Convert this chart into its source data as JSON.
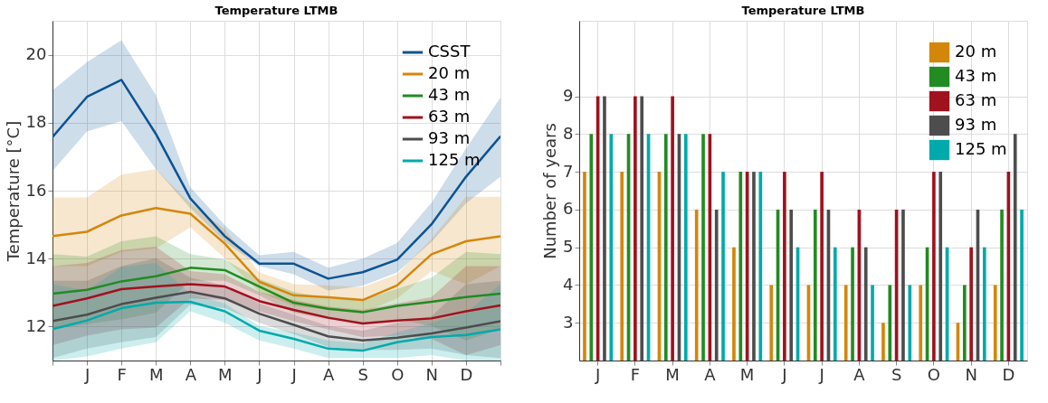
{
  "chart_data": [
    {
      "type": "line",
      "title": "Temperature LTMB",
      "ylabel": "Temperature [°C]",
      "categories": [
        null,
        "J",
        "F",
        "M",
        "A",
        "M",
        "J",
        "J",
        "A",
        "S",
        "O",
        "N",
        "D",
        null
      ],
      "ylim": [
        11,
        21
      ],
      "yticks": [
        12,
        14,
        16,
        18,
        20
      ],
      "grid": true,
      "legend": "top right",
      "series": [
        {
          "name": "CSST",
          "color": "#0b5394",
          "values": [
            17.58,
            18.76,
            19.26,
            17.67,
            15.77,
            14.66,
            13.85,
            13.85,
            13.41,
            13.6,
            13.97,
            15.01,
            16.41,
            17.6
          ],
          "lower": [
            16.58,
            17.74,
            18.05,
            16.63,
            15.49,
            14.49,
            13.78,
            13.54,
            13.06,
            13.2,
            13.59,
            14.49,
            15.63,
            16.41
          ],
          "upper": [
            18.95,
            19.78,
            20.43,
            18.81,
            16.1,
            14.98,
            14.1,
            14.2,
            13.73,
            14.0,
            14.46,
            15.65,
            17.24,
            18.74
          ]
        },
        {
          "name": "20 m",
          "color": "#d4860b",
          "values": [
            14.66,
            14.79,
            15.27,
            15.49,
            15.32,
            14.44,
            13.32,
            12.92,
            12.86,
            12.78,
            13.21,
            14.13,
            14.51,
            14.66
          ],
          "lower": [
            13.78,
            13.78,
            14.2,
            14.3,
            14.92,
            14.01,
            13.02,
            12.61,
            12.49,
            12.4,
            12.83,
            13.63,
            13.25,
            13.78
          ],
          "upper": [
            15.8,
            15.8,
            16.47,
            16.63,
            15.63,
            14.87,
            13.59,
            13.25,
            13.21,
            13.16,
            13.54,
            14.58,
            15.82,
            15.82
          ]
        },
        {
          "name": "43 m",
          "color": "#228b22",
          "values": [
            12.97,
            13.08,
            13.33,
            13.48,
            13.73,
            13.66,
            13.18,
            12.7,
            12.52,
            12.42,
            12.61,
            12.73,
            12.87,
            12.97
          ],
          "lower": [
            11.92,
            12.07,
            12.21,
            12.4,
            13.35,
            13.35,
            12.92,
            12.4,
            12.21,
            12.11,
            12.21,
            12.02,
            11.59,
            11.92
          ],
          "upper": [
            14.13,
            14.06,
            14.51,
            14.66,
            14.13,
            13.97,
            13.4,
            13.02,
            12.83,
            12.78,
            13.11,
            13.44,
            14.2,
            14.13
          ]
        },
        {
          "name": "63 m",
          "color": "#a0121e",
          "values": [
            12.61,
            12.83,
            13.1,
            13.18,
            13.25,
            13.18,
            12.75,
            12.49,
            12.26,
            12.09,
            12.18,
            12.24,
            12.45,
            12.62
          ],
          "lower": [
            11.45,
            11.73,
            11.92,
            11.97,
            12.83,
            12.78,
            12.45,
            12.16,
            11.92,
            11.69,
            11.73,
            11.64,
            11.16,
            11.45
          ],
          "upper": [
            13.78,
            13.87,
            14.25,
            14.35,
            13.63,
            13.54,
            13.02,
            12.78,
            12.59,
            12.49,
            12.68,
            12.87,
            13.78,
            13.78
          ]
        },
        {
          "name": "93 m",
          "color": "#4d4d4d",
          "values": [
            12.16,
            12.35,
            12.66,
            12.85,
            13.02,
            12.83,
            12.38,
            12.05,
            11.71,
            11.59,
            11.67,
            11.8,
            11.97,
            12.16
          ],
          "lower": [
            11.07,
            11.35,
            11.54,
            11.69,
            12.64,
            12.54,
            12.11,
            11.78,
            11.4,
            11.31,
            11.31,
            11.35,
            11.16,
            11.07
          ],
          "upper": [
            13.35,
            13.35,
            13.78,
            14.01,
            13.44,
            13.21,
            12.68,
            12.35,
            12.02,
            11.88,
            12.11,
            12.3,
            13.25,
            13.35
          ]
        },
        {
          "name": "125 m",
          "color": "#00aaaa",
          "values": [
            11.92,
            12.18,
            12.54,
            12.7,
            12.73,
            12.45,
            11.88,
            11.64,
            11.35,
            11.29,
            11.54,
            11.69,
            11.75,
            11.92
          ],
          "lower": [
            11.0,
            11.12,
            11.35,
            11.54,
            12.45,
            12.11,
            11.59,
            11.35,
            11.07,
            11.07,
            11.07,
            11.16,
            11.0,
            11.0
          ],
          "upper": [
            13.25,
            13.06,
            13.75,
            13.87,
            12.97,
            12.68,
            12.02,
            11.83,
            11.59,
            11.5,
            11.83,
            12.11,
            12.4,
            13.25
          ]
        }
      ]
    },
    {
      "type": "bar",
      "title": "Temperature LTMB",
      "ylabel": "Number of years",
      "categories": [
        "J",
        "F",
        "M",
        "A",
        "M",
        "J",
        "J",
        "A",
        "S",
        "O",
        "N",
        "D"
      ],
      "ylim": [
        2,
        11
      ],
      "yticks": [
        3,
        4,
        5,
        6,
        7,
        8,
        9
      ],
      "grid": true,
      "legend": "top right",
      "series": [
        {
          "name": "20 m",
          "color": "#d4860b",
          "values": [
            7,
            7,
            7,
            6,
            5,
            4,
            4,
            4,
            3,
            4,
            3,
            4
          ]
        },
        {
          "name": "43 m",
          "color": "#228b22",
          "values": [
            8,
            8,
            8,
            8,
            7,
            6,
            6,
            5,
            4,
            5,
            4,
            6
          ]
        },
        {
          "name": "63 m",
          "color": "#a0121e",
          "values": [
            9,
            9,
            9,
            8,
            7,
            7,
            7,
            6,
            6,
            7,
            5,
            7
          ]
        },
        {
          "name": "93 m",
          "color": "#4d4d4d",
          "values": [
            9,
            9,
            8,
            6,
            7,
            6,
            6,
            5,
            6,
            7,
            6,
            8
          ]
        },
        {
          "name": "125 m",
          "color": "#00aaaa",
          "values": [
            8,
            8,
            8,
            7,
            7,
            5,
            5,
            4,
            4,
            5,
            5,
            6
          ]
        }
      ]
    }
  ]
}
